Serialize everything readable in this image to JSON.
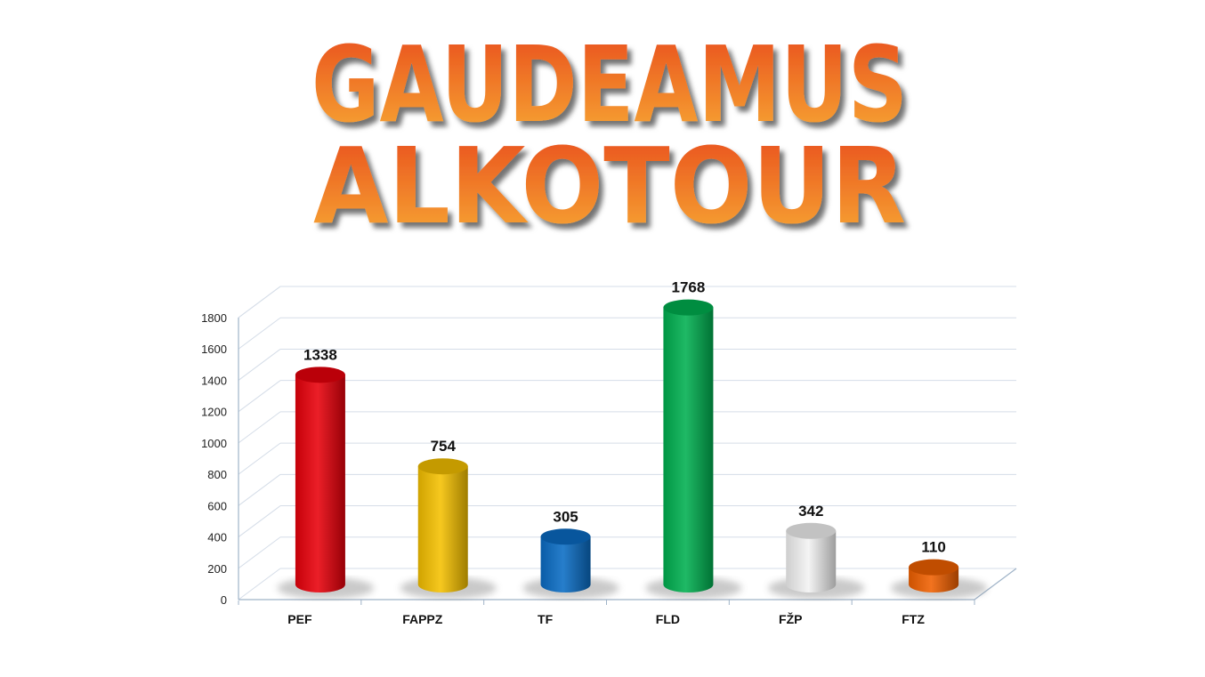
{
  "chart_data": {
    "type": "bar",
    "style": "3d-cylinder",
    "title_lines": [
      "GAUDEAMUS",
      "ALKOTOUR"
    ],
    "categories": [
      "PEF",
      "FAPPZ",
      "TF",
      "FLD",
      "FŽP",
      "FTZ"
    ],
    "values": [
      1338,
      754,
      305,
      1768,
      342,
      110
    ],
    "data_labels": [
      "1338",
      "754",
      "305",
      "1768",
      "342",
      "110"
    ],
    "colors": [
      "#e8000b",
      "#f5c000",
      "#0a6cc4",
      "#00b050",
      "#f2f2f2",
      "#f06000"
    ],
    "title_colors": [
      "#e8481c",
      "#f7a530"
    ],
    "yticks": [
      "0",
      "200",
      "400",
      "600",
      "800",
      "1000",
      "1200",
      "1400",
      "1600",
      "1800"
    ],
    "ylim": [
      0,
      1800
    ],
    "xlabel": "",
    "ylabel": "",
    "grid": true,
    "legend": "none"
  }
}
